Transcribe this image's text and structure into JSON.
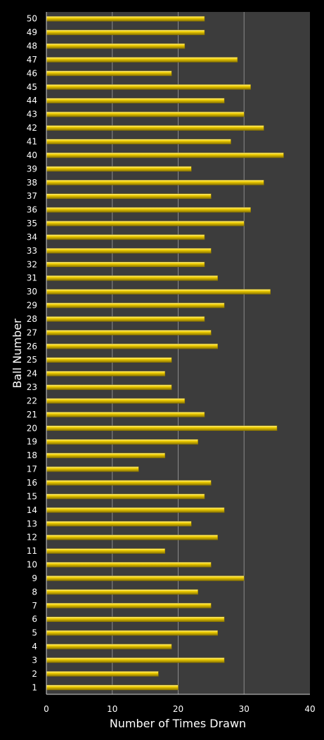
{
  "chart_data": {
    "type": "bar",
    "orientation": "horizontal",
    "title": "",
    "xlabel": "Number of Times Drawn",
    "ylabel": "Ball Number",
    "xlim": [
      0,
      40
    ],
    "xticks": [
      0,
      10,
      20,
      30,
      40
    ],
    "grid": "vertical",
    "categories": [
      "1",
      "2",
      "3",
      "4",
      "5",
      "6",
      "7",
      "8",
      "9",
      "10",
      "11",
      "12",
      "13",
      "14",
      "15",
      "16",
      "17",
      "18",
      "19",
      "20",
      "21",
      "22",
      "23",
      "24",
      "25",
      "26",
      "27",
      "28",
      "29",
      "30",
      "31",
      "32",
      "33",
      "34",
      "35",
      "36",
      "37",
      "38",
      "39",
      "40",
      "41",
      "42",
      "43",
      "44",
      "45",
      "46",
      "47",
      "48",
      "49",
      "50"
    ],
    "values": [
      20,
      17,
      27,
      19,
      26,
      27,
      25,
      23,
      30,
      25,
      18,
      26,
      22,
      27,
      24,
      25,
      14,
      18,
      23,
      35,
      24,
      21,
      19,
      18,
      19,
      26,
      25,
      24,
      27,
      34,
      26,
      24,
      25,
      24,
      30,
      31,
      25,
      33,
      22,
      36,
      28,
      33,
      30,
      27,
      31,
      19,
      29,
      21,
      24,
      24
    ],
    "colors": {
      "bar": "#f2d000",
      "bar_highlight": "#fff4a0",
      "bar_shadow": "#8a7400",
      "plot_bg": "#3c3c3c",
      "page_bg": "#000000",
      "grid": "#8a8a8a",
      "text": "#ffffff"
    }
  }
}
